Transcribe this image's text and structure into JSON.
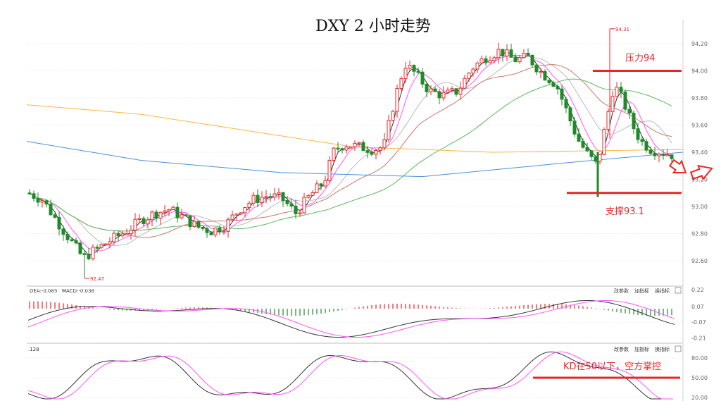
{
  "chart_data": [
    {
      "type": "candlestick",
      "title": "DXY 2 小时走势",
      "y_ticks": [
        "94.20",
        "94.00",
        "93.80",
        "93.60",
        "93.40",
        "93.20",
        "93.00",
        "92.80",
        "92.60"
      ],
      "ylim": [
        92.47,
        94.32
      ],
      "high_label": "94.31",
      "low_label": "92.47",
      "annotations": {
        "resistance": {
          "label": "压力94",
          "value": 94.0
        },
        "support": {
          "label": "支撑93.1",
          "value": 93.1
        }
      },
      "colors": {
        "up": "#e8262a",
        "down": "#1f8a2a",
        "ann": "#e8262a"
      }
    },
    {
      "type": "line",
      "panel": "MACD",
      "header": [
        "DEA:-0.085",
        "MACD:-0.036"
      ],
      "y_ticks": [
        "0.22",
        "0.07",
        "-0.07",
        "-0.21"
      ],
      "buttons": [
        "改参数",
        "加指标",
        "换指标"
      ]
    },
    {
      "type": "line",
      "panel": "KD",
      "header": ".128",
      "y_ticks": [
        "80.00",
        "50.00",
        "20.00"
      ],
      "buttons": [
        "改参数",
        "加指标",
        "换指标"
      ],
      "annotation": {
        "label": "KD在50以下，空方掌控",
        "value": 50
      }
    }
  ]
}
